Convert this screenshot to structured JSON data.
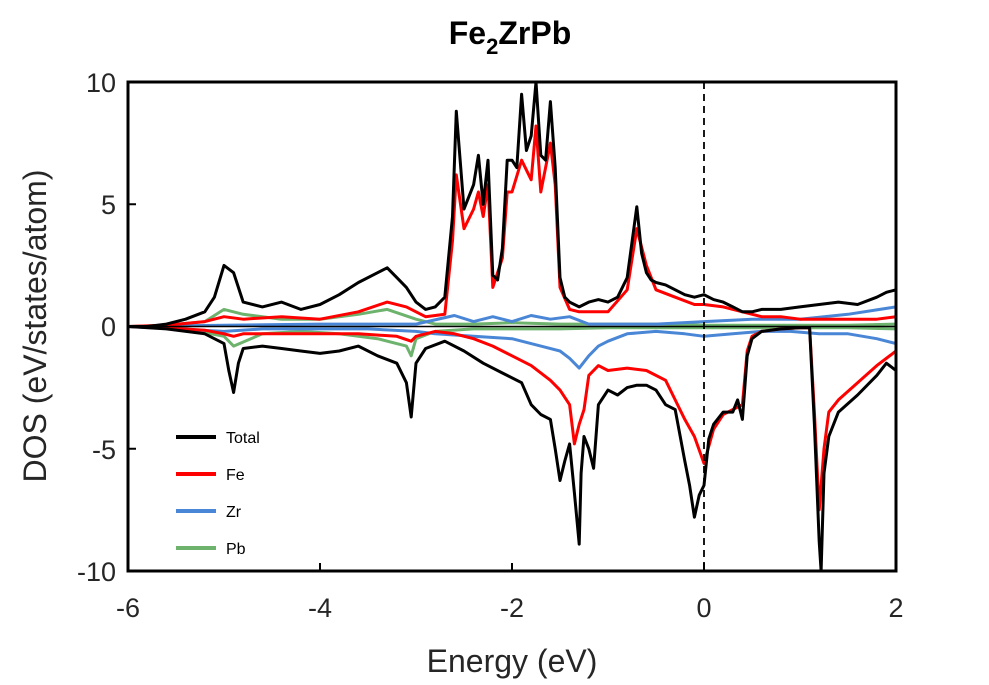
{
  "chart_data": {
    "type": "line",
    "title_main": "Fe",
    "title_sub": "2",
    "title_rest": "ZrPb",
    "xlabel": "Energy (eV)",
    "ylabel": "DOS (eV/states/atom)",
    "xlim": [
      -6,
      2
    ],
    "ylim": [
      -10,
      10
    ],
    "xticks": [
      -6,
      -4,
      -2,
      0,
      2
    ],
    "xtick_labels": [
      "-6",
      "-4",
      "-2",
      "0",
      "2"
    ],
    "yticks": [
      -10,
      -5,
      0,
      5,
      10
    ],
    "ytick_labels": [
      "-10",
      "-5",
      "0",
      "5",
      "10"
    ],
    "fermi_level": 0,
    "legend_position": "lower-left",
    "series": [
      {
        "name": "Total",
        "color": "#000000",
        "spin": "up",
        "x": [
          -6.0,
          -5.8,
          -5.6,
          -5.4,
          -5.2,
          -5.1,
          -5.0,
          -4.9,
          -4.8,
          -4.6,
          -4.4,
          -4.2,
          -4.0,
          -3.8,
          -3.6,
          -3.4,
          -3.3,
          -3.2,
          -3.1,
          -3.0,
          -2.9,
          -2.8,
          -2.7,
          -2.62,
          -2.58,
          -2.5,
          -2.4,
          -2.35,
          -2.3,
          -2.25,
          -2.2,
          -2.15,
          -2.1,
          -2.05,
          -2.0,
          -1.95,
          -1.9,
          -1.85,
          -1.8,
          -1.75,
          -1.7,
          -1.65,
          -1.6,
          -1.55,
          -1.5,
          -1.45,
          -1.4,
          -1.35,
          -1.3,
          -1.25,
          -1.2,
          -1.1,
          -1.0,
          -0.9,
          -0.8,
          -0.7,
          -0.65,
          -0.6,
          -0.55,
          -0.5,
          -0.4,
          -0.3,
          -0.2,
          -0.1,
          0.0,
          0.1,
          0.2,
          0.3,
          0.4,
          0.5,
          0.6,
          0.8,
          1.0,
          1.2,
          1.4,
          1.6,
          1.8,
          1.9,
          2.0
        ],
        "y": [
          0.0,
          0.0,
          0.1,
          0.3,
          0.6,
          1.2,
          2.5,
          2.2,
          1.0,
          0.8,
          1.0,
          0.7,
          0.9,
          1.3,
          1.8,
          2.2,
          2.4,
          2.0,
          1.6,
          1.0,
          0.7,
          0.8,
          1.2,
          4.5,
          8.8,
          4.8,
          5.8,
          7.0,
          5.0,
          6.8,
          2.1,
          1.9,
          3.2,
          6.8,
          6.8,
          6.5,
          9.5,
          7.2,
          7.8,
          10.0,
          7.0,
          6.8,
          9.2,
          6.5,
          2.0,
          1.2,
          1.0,
          0.9,
          0.8,
          0.9,
          1.0,
          1.1,
          1.0,
          1.2,
          2.0,
          4.9,
          3.0,
          2.2,
          1.9,
          1.8,
          1.7,
          1.5,
          1.3,
          1.2,
          1.3,
          1.1,
          1.0,
          0.8,
          0.6,
          0.6,
          0.7,
          0.7,
          0.8,
          0.9,
          1.0,
          0.9,
          1.2,
          1.4,
          1.5
        ]
      },
      {
        "name": "Fe",
        "color": "#ff0000",
        "spin": "up",
        "x": [
          -6.0,
          -5.6,
          -5.2,
          -5.0,
          -4.8,
          -4.4,
          -4.0,
          -3.6,
          -3.3,
          -3.1,
          -2.9,
          -2.7,
          -2.62,
          -2.58,
          -2.5,
          -2.4,
          -2.35,
          -2.3,
          -2.25,
          -2.2,
          -2.1,
          -2.05,
          -2.0,
          -1.9,
          -1.8,
          -1.75,
          -1.7,
          -1.6,
          -1.55,
          -1.5,
          -1.4,
          -1.3,
          -1.2,
          -1.0,
          -0.8,
          -0.7,
          -0.6,
          -0.5,
          -0.3,
          -0.1,
          0.0,
          0.2,
          0.4,
          0.6,
          0.8,
          1.0,
          1.4,
          1.8,
          2.0
        ],
        "y": [
          0.0,
          0.05,
          0.2,
          0.4,
          0.3,
          0.4,
          0.3,
          0.6,
          1.0,
          0.8,
          0.4,
          0.5,
          3.5,
          6.2,
          4.0,
          4.8,
          5.5,
          4.5,
          5.8,
          1.6,
          2.8,
          5.5,
          5.5,
          6.8,
          6.0,
          8.2,
          5.5,
          7.5,
          5.8,
          1.6,
          0.7,
          0.6,
          0.6,
          0.6,
          1.5,
          4.0,
          2.5,
          1.5,
          1.2,
          0.9,
          0.9,
          0.8,
          0.6,
          0.4,
          0.4,
          0.3,
          0.3,
          0.3,
          0.4
        ]
      },
      {
        "name": "Zr",
        "color": "#4a86d6",
        "spin": "up",
        "x": [
          -6.0,
          -5.0,
          -4.0,
          -3.0,
          -2.6,
          -2.4,
          -2.2,
          -2.0,
          -1.8,
          -1.6,
          -1.4,
          -1.2,
          -1.0,
          -0.5,
          0.0,
          0.5,
          1.0,
          1.5,
          2.0
        ],
        "y": [
          0.0,
          0.05,
          0.1,
          0.1,
          0.45,
          0.2,
          0.4,
          0.2,
          0.45,
          0.3,
          0.4,
          0.1,
          0.1,
          0.1,
          0.2,
          0.3,
          0.3,
          0.5,
          0.8
        ]
      },
      {
        "name": "Pb",
        "color": "#6db36d",
        "spin": "up",
        "x": [
          -6.0,
          -5.6,
          -5.2,
          -5.0,
          -4.8,
          -4.4,
          -4.0,
          -3.6,
          -3.3,
          -3.0,
          -2.8,
          -2.4,
          -2.0,
          -1.5,
          -1.0,
          -0.5,
          0.0,
          0.5,
          1.0,
          1.5,
          2.0
        ],
        "y": [
          0.0,
          0.05,
          0.2,
          0.7,
          0.5,
          0.3,
          0.3,
          0.5,
          0.7,
          0.3,
          0.1,
          0.1,
          0.15,
          0.1,
          0.1,
          0.1,
          0.05,
          0.05,
          0.05,
          0.05,
          0.1
        ]
      },
      {
        "name": "Total",
        "color": "#000000",
        "spin": "down",
        "x": [
          -6.0,
          -5.6,
          -5.2,
          -5.0,
          -4.95,
          -4.9,
          -4.85,
          -4.8,
          -4.6,
          -4.4,
          -4.2,
          -4.0,
          -3.8,
          -3.6,
          -3.4,
          -3.2,
          -3.1,
          -3.05,
          -3.0,
          -2.9,
          -2.7,
          -2.5,
          -2.3,
          -2.1,
          -1.9,
          -1.8,
          -1.7,
          -1.6,
          -1.55,
          -1.5,
          -1.45,
          -1.4,
          -1.35,
          -1.3,
          -1.28,
          -1.25,
          -1.2,
          -1.15,
          -1.1,
          -1.0,
          -0.9,
          -0.8,
          -0.7,
          -0.6,
          -0.5,
          -0.4,
          -0.3,
          -0.2,
          -0.15,
          -0.1,
          -0.05,
          0.0,
          0.05,
          0.1,
          0.2,
          0.3,
          0.35,
          0.4,
          0.45,
          0.5,
          0.6,
          0.8,
          1.0,
          1.1,
          1.15,
          1.2,
          1.22,
          1.25,
          1.3,
          1.4,
          1.6,
          1.8,
          1.9,
          2.0
        ],
        "y": [
          0.0,
          -0.1,
          -0.3,
          -0.7,
          -1.8,
          -2.7,
          -1.5,
          -0.9,
          -0.8,
          -0.9,
          -1.0,
          -1.1,
          -1.0,
          -0.8,
          -1.2,
          -1.5,
          -2.3,
          -3.7,
          -1.5,
          -0.9,
          -0.6,
          -1.0,
          -1.5,
          -1.9,
          -2.3,
          -3.2,
          -3.6,
          -3.8,
          -5.0,
          -6.3,
          -5.5,
          -4.8,
          -6.8,
          -8.9,
          -6.0,
          -4.5,
          -5.0,
          -5.8,
          -3.2,
          -2.6,
          -2.8,
          -2.5,
          -2.4,
          -2.4,
          -2.6,
          -3.2,
          -3.4,
          -5.5,
          -6.5,
          -7.8,
          -6.9,
          -6.5,
          -4.6,
          -4.0,
          -3.5,
          -3.5,
          -3.0,
          -3.8,
          -1.2,
          -0.5,
          -0.2,
          -0.1,
          -0.05,
          -0.05,
          -4.0,
          -8.8,
          -10.0,
          -6.0,
          -4.5,
          -3.5,
          -2.8,
          -2.0,
          -1.5,
          -1.8
        ]
      },
      {
        "name": "Fe",
        "color": "#ff0000",
        "spin": "down",
        "x": [
          -6.0,
          -5.6,
          -5.2,
          -5.0,
          -4.9,
          -4.8,
          -4.4,
          -4.0,
          -3.6,
          -3.2,
          -3.05,
          -3.0,
          -2.8,
          -2.6,
          -2.4,
          -2.2,
          -2.0,
          -1.8,
          -1.6,
          -1.5,
          -1.4,
          -1.35,
          -1.3,
          -1.25,
          -1.2,
          -1.1,
          -1.0,
          -0.8,
          -0.6,
          -0.4,
          -0.3,
          -0.2,
          -0.1,
          0.0,
          0.1,
          0.2,
          0.3,
          0.4,
          0.45,
          0.5,
          0.6,
          0.8,
          1.0,
          1.1,
          1.15,
          1.2,
          1.25,
          1.3,
          1.4,
          1.6,
          1.8,
          2.0
        ],
        "y": [
          0.0,
          -0.05,
          -0.15,
          -0.3,
          -0.4,
          -0.3,
          -0.3,
          -0.3,
          -0.3,
          -0.4,
          -0.6,
          -0.4,
          -0.2,
          -0.3,
          -0.5,
          -0.8,
          -1.2,
          -1.6,
          -2.2,
          -2.6,
          -3.2,
          -4.8,
          -4.0,
          -3.4,
          -2.0,
          -1.6,
          -1.8,
          -1.7,
          -1.8,
          -2.2,
          -3.0,
          -3.8,
          -4.5,
          -5.6,
          -4.2,
          -3.6,
          -3.4,
          -3.2,
          -1.0,
          -0.4,
          -0.2,
          -0.1,
          -0.05,
          -0.05,
          -3.5,
          -7.5,
          -5.0,
          -3.5,
          -3.0,
          -2.3,
          -1.6,
          -1.0
        ]
      },
      {
        "name": "Zr",
        "color": "#4a86d6",
        "spin": "down",
        "x": [
          -6.0,
          -5.0,
          -4.6,
          -4.0,
          -3.5,
          -3.0,
          -2.8,
          -2.4,
          -2.0,
          -1.7,
          -1.5,
          -1.4,
          -1.3,
          -1.2,
          -1.1,
          -1.0,
          -0.8,
          -0.5,
          -0.2,
          0.0,
          0.3,
          0.6,
          0.9,
          1.2,
          1.5,
          1.8,
          2.0
        ],
        "y": [
          0.0,
          -0.2,
          -0.1,
          -0.1,
          -0.1,
          -0.2,
          -0.3,
          -0.4,
          -0.5,
          -0.8,
          -1.0,
          -1.3,
          -1.7,
          -1.2,
          -0.8,
          -0.6,
          -0.3,
          -0.2,
          -0.3,
          -0.4,
          -0.3,
          -0.2,
          -0.2,
          -0.3,
          -0.3,
          -0.5,
          -0.7
        ]
      },
      {
        "name": "Pb",
        "color": "#6db36d",
        "spin": "down",
        "x": [
          -6.0,
          -5.4,
          -5.0,
          -4.9,
          -4.6,
          -4.2,
          -3.8,
          -3.4,
          -3.1,
          -3.05,
          -3.0,
          -2.8,
          -2.4,
          -2.0,
          -1.5,
          -1.0,
          -0.5,
          0.0,
          0.5,
          1.0,
          1.5,
          2.0
        ],
        "y": [
          0.0,
          -0.1,
          -0.4,
          -0.8,
          -0.3,
          -0.2,
          -0.3,
          -0.5,
          -0.8,
          -1.2,
          -0.5,
          -0.2,
          -0.1,
          -0.1,
          -0.1,
          -0.05,
          -0.05,
          -0.05,
          -0.05,
          -0.05,
          -0.05,
          -0.1
        ]
      }
    ]
  }
}
